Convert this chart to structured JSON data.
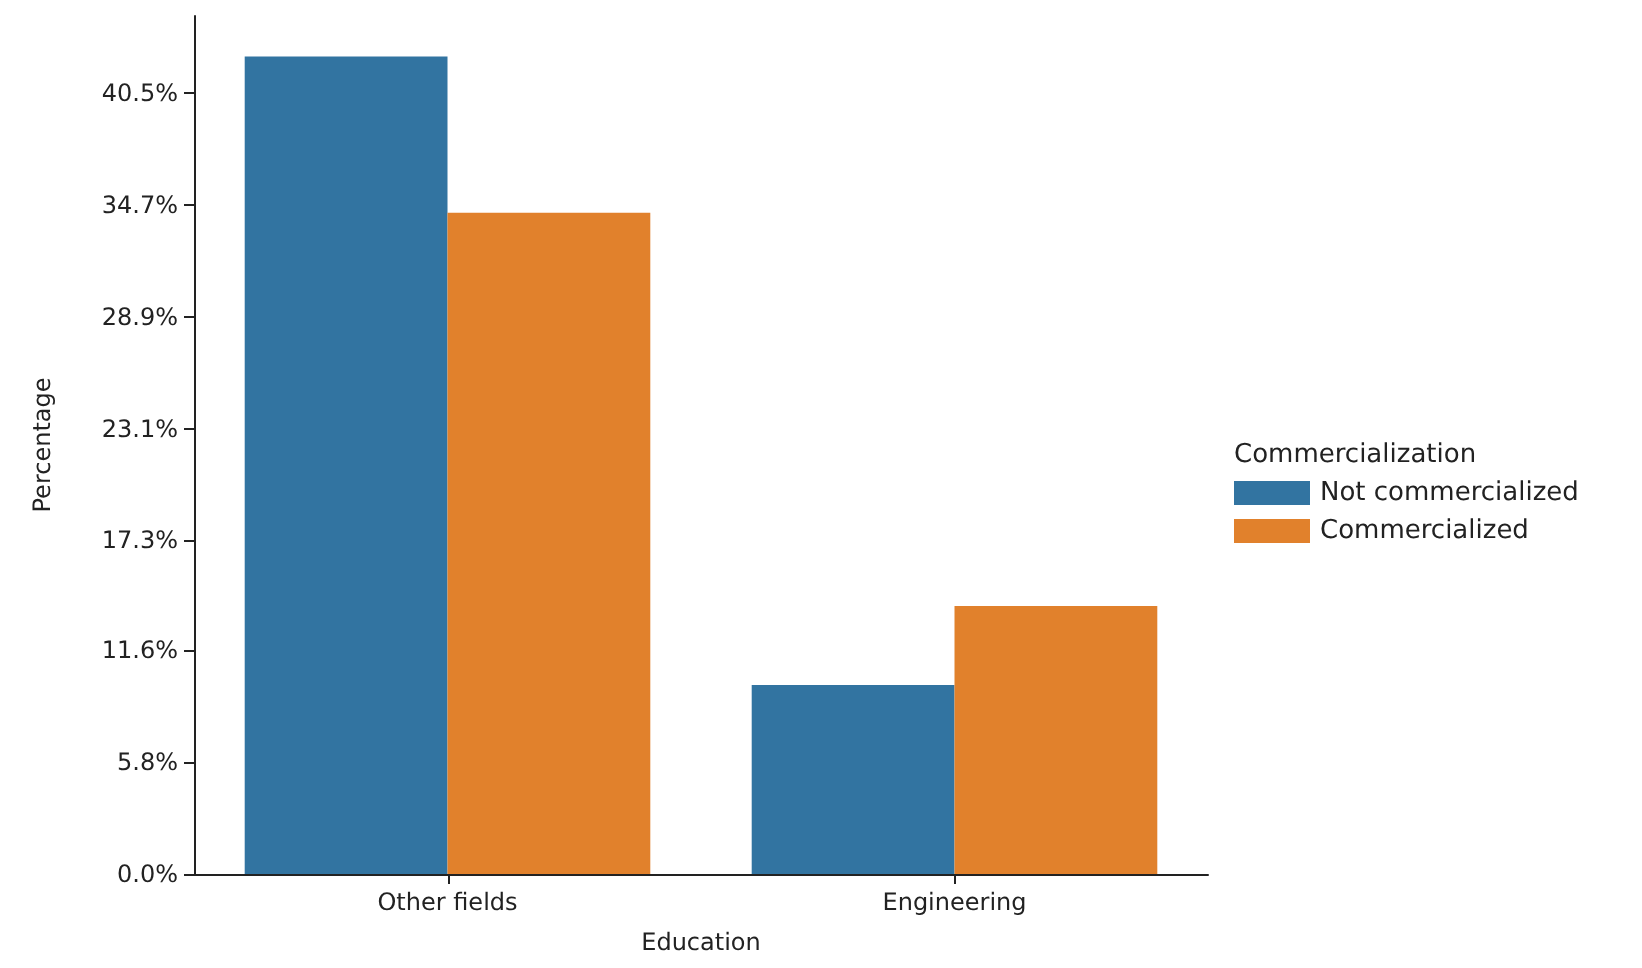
{
  "chart_data": {
    "type": "bar",
    "xlabel": "Education",
    "ylabel": "Percentage",
    "legend_title": "Commercialization",
    "categories": [
      "Other fields",
      "Engineering"
    ],
    "series": [
      {
        "name": "Not commercialized",
        "color": "#3274a1",
        "values": [
          42.4,
          9.8
        ]
      },
      {
        "name": "Commercialized",
        "color": "#e1812c",
        "values": [
          34.3,
          13.9
        ]
      }
    ],
    "ylim": [
      0,
      44.5
    ],
    "yticks": [
      {
        "value": 0,
        "label": "0.0%"
      },
      {
        "value": 5.8,
        "label": "5.8%"
      },
      {
        "value": 11.6,
        "label": "11.6%"
      },
      {
        "value": 17.3,
        "label": "17.3%"
      },
      {
        "value": 23.1,
        "label": "23.1%"
      },
      {
        "value": 28.9,
        "label": "28.9%"
      },
      {
        "value": 34.7,
        "label": "34.7%"
      },
      {
        "value": 40.5,
        "label": "40.5%"
      }
    ],
    "grid": false,
    "legend": "right"
  }
}
